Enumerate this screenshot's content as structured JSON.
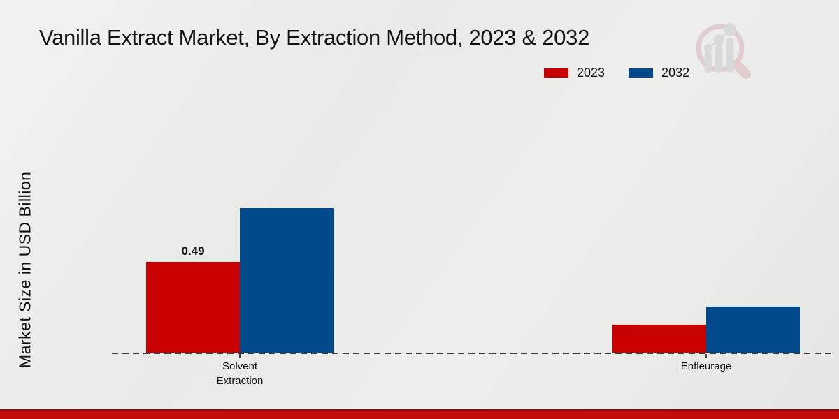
{
  "page": {
    "title": "Vanilla Extract Market, By Extraction Method, 2023 & 2032",
    "ylabel": "Market Size in USD Billion"
  },
  "legend": {
    "items": [
      {
        "label": "2023",
        "color": "#c80000"
      },
      {
        "label": "2032",
        "color": "#004a8c"
      }
    ]
  },
  "logo": {
    "description": "magnifying-glass-bar-chart-watermark"
  },
  "colors": {
    "series_2023": "#c80000",
    "series_2032": "#004a8c",
    "baseline": "#3a3a3a",
    "bottom_strip": "#c40b0b",
    "background": "#e9eae8"
  },
  "chart_data": {
    "type": "bar",
    "title": "Vanilla Extract Market, By Extraction Method, 2023 & 2032",
    "categories": [
      "Solvent Extraction",
      "Enfleurage"
    ],
    "series": [
      {
        "name": "2023",
        "color": "#c80000",
        "values": [
          0.49,
          0.15
        ],
        "labels": [
          "0.49",
          ""
        ]
      },
      {
        "name": "2032",
        "color": "#004a8c",
        "values": [
          0.78,
          0.25
        ],
        "labels": [
          "",
          ""
        ]
      }
    ],
    "xlabel": "",
    "ylabel": "Market Size in USD Billion",
    "ylim": [
      0,
      1.9
    ],
    "grid": false,
    "legend_position": "top-right",
    "baseline_style": "dashed",
    "value_label_shown_only_for": "Solvent Extraction 2023"
  }
}
